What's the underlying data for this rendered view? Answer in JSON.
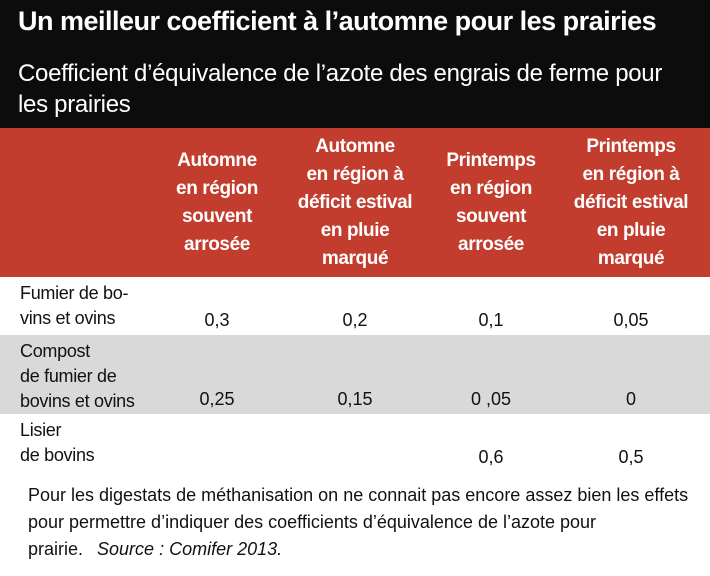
{
  "header": {
    "title": "Un meilleur coefficient à l’automne pour les prairies",
    "subtitle": "Coefficient d’équivalence de l’azote des engrais de ferme pour les prairies"
  },
  "table": {
    "columns": [
      "Automne\nen région\nsouvent\narrosée",
      "Automne\nen région à\ndéficit estival\nen pluie\nmarqué",
      "Printemps\nen région\nsouvent\narrosée",
      "Printemps\nen région à\ndéficit estival\nen pluie\nmarqué"
    ],
    "rows": [
      {
        "label": "Fumier de bo-\nvins et ovins",
        "values": [
          "0,3",
          "0,2",
          "0,1",
          "0,05"
        ]
      },
      {
        "label": "Compost\nde fumier de\nbovins et ovins",
        "values": [
          "0,25",
          "0,15",
          "0 ,05",
          "0"
        ]
      },
      {
        "label": "Lisier\nde bovins",
        "values": [
          "",
          "",
          "0,6",
          "0,5"
        ]
      }
    ]
  },
  "footnote": {
    "text": "Pour les digestats de méthanisation on ne connait pas encore assez bien les effets pour permettre d’indiquer des coefficients d’équivalence de l’azote pour prairie.",
    "source": "Source : Comifer 2013."
  },
  "colors": {
    "header_bg": "#0c0c0c",
    "column_header_bg": "#c23d2e",
    "alt_row_bg": "#d9d9d9"
  }
}
